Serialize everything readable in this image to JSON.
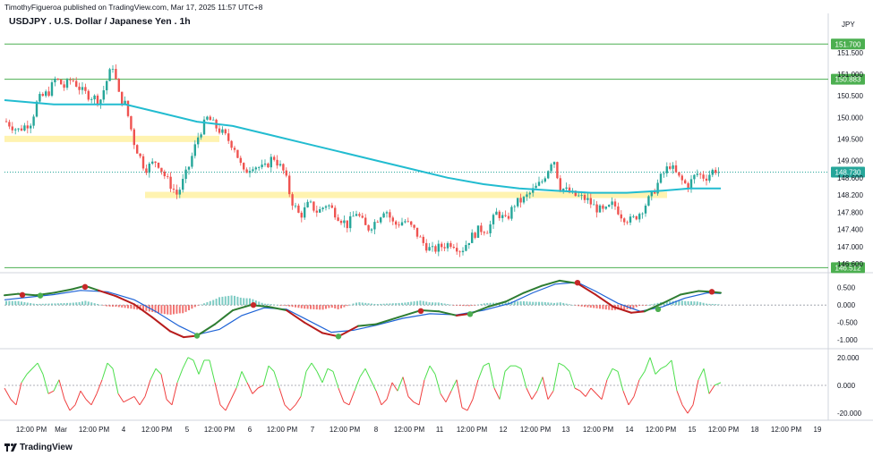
{
  "header": {
    "published_line": "TimothyFigueroa published on TradingView.com, Mar 17, 2025 11:57 UTC+8",
    "title": "USDJPY . U.S. Dollar / Japanese Yen . 1h",
    "currency_label": "JPY"
  },
  "footer": {
    "brand": "TradingView"
  },
  "colors": {
    "up": "#26a69a",
    "down": "#ef5350",
    "ema": "#22bcd0",
    "level_line": "#4caf50",
    "zone": "#fff3b0",
    "macd_fast": "#2e7d32",
    "macd_slow": "#1e63d6",
    "macd_down": "#b71c1c",
    "osc_up": "#4cdf4c",
    "osc_down": "#f04040"
  },
  "chart_data": [
    {
      "type": "candlestick",
      "title": "USDJPY . U.S. Dollar / Japanese Yen . 1h",
      "yaxis_ticks": [
        "151.500",
        "151.000",
        "150.500",
        "150.000",
        "149.500",
        "149.000",
        "148.600",
        "148.200",
        "147.800",
        "147.400",
        "147.000",
        "146.600"
      ],
      "ylim": [
        146.5,
        152.1
      ],
      "close_path": [
        [
          0,
          150.0
        ],
        [
          20,
          149.7
        ],
        [
          35,
          149.9
        ],
        [
          42,
          150.4
        ],
        [
          55,
          150.6
        ],
        [
          62,
          150.9
        ],
        [
          72,
          150.7
        ],
        [
          80,
          150.9
        ],
        [
          92,
          150.6
        ],
        [
          100,
          150.5
        ],
        [
          112,
          150.4
        ],
        [
          120,
          150.9
        ],
        [
          126,
          151.2
        ],
        [
          133,
          150.5
        ],
        [
          140,
          150.3
        ],
        [
          150,
          149.4
        ],
        [
          162,
          148.8
        ],
        [
          175,
          149.0
        ],
        [
          185,
          148.6
        ],
        [
          198,
          148.2
        ],
        [
          210,
          148.8
        ],
        [
          222,
          149.6
        ],
        [
          232,
          150.0
        ],
        [
          240,
          149.8
        ],
        [
          250,
          149.6
        ],
        [
          262,
          149.3
        ],
        [
          272,
          148.7
        ],
        [
          282,
          148.9
        ],
        [
          295,
          148.8
        ],
        [
          305,
          149.1
        ],
        [
          318,
          148.7
        ],
        [
          325,
          148.1
        ],
        [
          335,
          147.7
        ],
        [
          345,
          148.0
        ],
        [
          355,
          147.8
        ],
        [
          365,
          148.0
        ],
        [
          378,
          147.7
        ],
        [
          388,
          147.5
        ],
        [
          398,
          147.8
        ],
        [
          410,
          147.4
        ],
        [
          420,
          147.6
        ],
        [
          430,
          147.9
        ],
        [
          440,
          147.5
        ],
        [
          452,
          147.6
        ],
        [
          462,
          147.4
        ],
        [
          472,
          147.1
        ],
        [
          482,
          146.9
        ],
        [
          492,
          147.0
        ],
        [
          505,
          147.1
        ],
        [
          515,
          146.9
        ],
        [
          525,
          147.2
        ],
        [
          535,
          147.4
        ],
        [
          545,
          147.4
        ],
        [
          555,
          147.8
        ],
        [
          565,
          147.6
        ],
        [
          575,
          148.0
        ],
        [
          585,
          148.1
        ],
        [
          595,
          148.3
        ],
        [
          605,
          148.5
        ],
        [
          612,
          148.8
        ],
        [
          618,
          149.1
        ],
        [
          625,
          148.4
        ],
        [
          640,
          148.2
        ],
        [
          655,
          148.1
        ],
        [
          665,
          147.9
        ],
        [
          675,
          147.8
        ],
        [
          685,
          148.0
        ],
        [
          695,
          147.7
        ],
        [
          705,
          147.6
        ],
        [
          715,
          147.8
        ],
        [
          728,
          148.2
        ],
        [
          738,
          148.6
        ],
        [
          748,
          148.9
        ],
        [
          758,
          148.6
        ],
        [
          768,
          148.4
        ],
        [
          778,
          148.7
        ],
        [
          788,
          148.6
        ],
        [
          798,
          148.8
        ],
        [
          805,
          148.7
        ]
      ],
      "ema_path": [
        [
          5,
          150.4
        ],
        [
          60,
          150.3
        ],
        [
          100,
          150.3
        ],
        [
          140,
          150.3
        ],
        [
          180,
          150.1
        ],
        [
          220,
          149.9
        ],
        [
          260,
          149.8
        ],
        [
          300,
          149.6
        ],
        [
          340,
          149.4
        ],
        [
          380,
          149.2
        ],
        [
          420,
          149.0
        ],
        [
          460,
          148.8
        ],
        [
          500,
          148.6
        ],
        [
          540,
          148.45
        ],
        [
          580,
          148.35
        ],
        [
          620,
          148.3
        ],
        [
          660,
          148.25
        ],
        [
          700,
          148.25
        ],
        [
          740,
          148.3
        ],
        [
          770,
          148.35
        ],
        [
          805,
          148.35
        ]
      ],
      "horizontal_levels": [
        {
          "price": 151.7,
          "label": "151.700"
        },
        {
          "price": 150.883,
          "label": "150.883"
        },
        {
          "price": 146.512,
          "label": "146.512"
        }
      ],
      "current_price": {
        "price": 148.73,
        "label": "148.730"
      },
      "zones": [
        {
          "x1": 5,
          "x2": 245,
          "price": 149.5
        },
        {
          "x1": 162,
          "x2": 745,
          "price": 148.2
        }
      ]
    },
    {
      "type": "line",
      "yaxis_ticks": [
        "0.500",
        "0.000",
        "-0.500",
        "-1.000"
      ],
      "ylim": [
        -1.2,
        0.85
      ],
      "series": [],
      "fast": [
        [
          5,
          0.28
        ],
        [
          20,
          0.32
        ],
        [
          40,
          0.28
        ],
        [
          60,
          0.35
        ],
        [
          80,
          0.45
        ],
        [
          95,
          0.55
        ],
        [
          110,
          0.42
        ],
        [
          130,
          0.25
        ],
        [
          150,
          0.02
        ],
        [
          170,
          -0.35
        ],
        [
          190,
          -0.75
        ],
        [
          205,
          -0.92
        ],
        [
          220,
          -0.88
        ],
        [
          240,
          -0.55
        ],
        [
          260,
          -0.15
        ],
        [
          280,
          0.0
        ],
        [
          300,
          -0.05
        ],
        [
          320,
          -0.15
        ],
        [
          340,
          -0.5
        ],
        [
          360,
          -0.8
        ],
        [
          378,
          -0.9
        ],
        [
          400,
          -0.6
        ],
        [
          420,
          -0.55
        ],
        [
          445,
          -0.35
        ],
        [
          470,
          -0.15
        ],
        [
          490,
          -0.18
        ],
        [
          510,
          -0.3
        ],
        [
          525,
          -0.25
        ],
        [
          545,
          -0.05
        ],
        [
          565,
          0.1
        ],
        [
          585,
          0.35
        ],
        [
          605,
          0.55
        ],
        [
          625,
          0.7
        ],
        [
          645,
          0.62
        ],
        [
          665,
          0.3
        ],
        [
          685,
          -0.05
        ],
        [
          705,
          -0.22
        ],
        [
          720,
          -0.18
        ],
        [
          740,
          0.05
        ],
        [
          760,
          0.3
        ],
        [
          780,
          0.4
        ],
        [
          795,
          0.38
        ],
        [
          805,
          0.35
        ]
      ],
      "slow": [
        [
          5,
          0.15
        ],
        [
          30,
          0.22
        ],
        [
          60,
          0.3
        ],
        [
          90,
          0.42
        ],
        [
          120,
          0.38
        ],
        [
          150,
          0.15
        ],
        [
          175,
          -0.2
        ],
        [
          200,
          -0.6
        ],
        [
          220,
          -0.85
        ],
        [
          245,
          -0.7
        ],
        [
          270,
          -0.3
        ],
        [
          295,
          -0.08
        ],
        [
          320,
          -0.12
        ],
        [
          345,
          -0.45
        ],
        [
          370,
          -0.78
        ],
        [
          395,
          -0.72
        ],
        [
          420,
          -0.58
        ],
        [
          450,
          -0.38
        ],
        [
          480,
          -0.25
        ],
        [
          510,
          -0.28
        ],
        [
          540,
          -0.15
        ],
        [
          570,
          0.05
        ],
        [
          595,
          0.35
        ],
        [
          620,
          0.6
        ],
        [
          645,
          0.65
        ],
        [
          665,
          0.4
        ],
        [
          690,
          0.05
        ],
        [
          715,
          -0.18
        ],
        [
          740,
          -0.05
        ],
        [
          765,
          0.2
        ],
        [
          790,
          0.35
        ],
        [
          805,
          0.33
        ]
      ],
      "cross_points": [
        {
          "x": 25,
          "v": 0.29,
          "up": false
        },
        {
          "x": 45,
          "v": 0.27,
          "up": true
        },
        {
          "x": 95,
          "v": 0.52,
          "up": false
        },
        {
          "x": 220,
          "v": -0.88,
          "up": true
        },
        {
          "x": 283,
          "v": 0.0,
          "up": false
        },
        {
          "x": 378,
          "v": -0.9,
          "up": true
        },
        {
          "x": 470,
          "v": -0.17,
          "up": false
        },
        {
          "x": 525,
          "v": -0.26,
          "up": true
        },
        {
          "x": 645,
          "v": 0.64,
          "up": false
        },
        {
          "x": 735,
          "v": -0.12,
          "up": true
        },
        {
          "x": 795,
          "v": 0.38,
          "up": false
        }
      ]
    },
    {
      "type": "line",
      "yaxis_ticks": [
        "20.000",
        "0.000",
        "-20.000"
      ],
      "ylim": [
        -25,
        25
      ],
      "series": [],
      "osc": [
        [
          5,
          -2
        ],
        [
          12,
          -10
        ],
        [
          18,
          -14
        ],
        [
          24,
          2
        ],
        [
          30,
          8
        ],
        [
          36,
          12
        ],
        [
          42,
          16
        ],
        [
          48,
          8
        ],
        [
          54,
          -6
        ],
        [
          60,
          -4
        ],
        [
          66,
          4
        ],
        [
          72,
          -10
        ],
        [
          78,
          -18
        ],
        [
          84,
          -14
        ],
        [
          90,
          -4
        ],
        [
          96,
          -10
        ],
        [
          102,
          -14
        ],
        [
          108,
          -6
        ],
        [
          114,
          4
        ],
        [
          120,
          16
        ],
        [
          126,
          12
        ],
        [
          132,
          -6
        ],
        [
          138,
          -12
        ],
        [
          144,
          -10
        ],
        [
          150,
          -8
        ],
        [
          156,
          -14
        ],
        [
          162,
          -8
        ],
        [
          168,
          4
        ],
        [
          174,
          12
        ],
        [
          180,
          8
        ],
        [
          186,
          -10
        ],
        [
          192,
          -14
        ],
        [
          198,
          2
        ],
        [
          204,
          12
        ],
        [
          210,
          20
        ],
        [
          216,
          18
        ],
        [
          222,
          8
        ],
        [
          228,
          18
        ],
        [
          234,
          18
        ],
        [
          240,
          2
        ],
        [
          246,
          -14
        ],
        [
          252,
          -18
        ],
        [
          258,
          -10
        ],
        [
          264,
          -2
        ],
        [
          270,
          10
        ],
        [
          276,
          2
        ],
        [
          282,
          -6
        ],
        [
          288,
          -2
        ],
        [
          294,
          0
        ],
        [
          300,
          14
        ],
        [
          306,
          10
        ],
        [
          312,
          -2
        ],
        [
          318,
          -14
        ],
        [
          324,
          -18
        ],
        [
          330,
          -14
        ],
        [
          336,
          -8
        ],
        [
          342,
          10
        ],
        [
          348,
          16
        ],
        [
          354,
          10
        ],
        [
          360,
          2
        ],
        [
          366,
          12
        ],
        [
          372,
          10
        ],
        [
          378,
          -2
        ],
        [
          384,
          -12
        ],
        [
          390,
          -14
        ],
        [
          396,
          -4
        ],
        [
          402,
          6
        ],
        [
          408,
          12
        ],
        [
          414,
          4
        ],
        [
          420,
          -4
        ],
        [
          426,
          -14
        ],
        [
          432,
          -10
        ],
        [
          438,
          2
        ],
        [
          444,
          -4
        ],
        [
          450,
          6
        ],
        [
          456,
          -8
        ],
        [
          462,
          -12
        ],
        [
          468,
          -14
        ],
        [
          474,
          4
        ],
        [
          480,
          14
        ],
        [
          486,
          8
        ],
        [
          492,
          -6
        ],
        [
          498,
          -12
        ],
        [
          504,
          -4
        ],
        [
          510,
          4
        ],
        [
          516,
          -16
        ],
        [
          522,
          -18
        ],
        [
          528,
          -10
        ],
        [
          534,
          4
        ],
        [
          540,
          14
        ],
        [
          546,
          16
        ],
        [
          552,
          -2
        ],
        [
          558,
          -10
        ],
        [
          564,
          10
        ],
        [
          570,
          14
        ],
        [
          576,
          14
        ],
        [
          582,
          12
        ],
        [
          588,
          -2
        ],
        [
          594,
          -10
        ],
        [
          600,
          -4
        ],
        [
          606,
          6
        ],
        [
          612,
          -10
        ],
        [
          618,
          -4
        ],
        [
          624,
          16
        ],
        [
          630,
          14
        ],
        [
          636,
          10
        ],
        [
          642,
          -2
        ],
        [
          648,
          -4
        ],
        [
          654,
          -8
        ],
        [
          660,
          -2
        ],
        [
          666,
          -6
        ],
        [
          672,
          -10
        ],
        [
          678,
          4
        ],
        [
          684,
          12
        ],
        [
          690,
          10
        ],
        [
          696,
          -4
        ],
        [
          702,
          -14
        ],
        [
          708,
          -8
        ],
        [
          714,
          4
        ],
        [
          720,
          10
        ],
        [
          726,
          20
        ],
        [
          732,
          8
        ],
        [
          738,
          12
        ],
        [
          744,
          14
        ],
        [
          750,
          18
        ],
        [
          756,
          -4
        ],
        [
          762,
          -14
        ],
        [
          768,
          -20
        ],
        [
          774,
          -14
        ],
        [
          780,
          4
        ],
        [
          786,
          12
        ],
        [
          792,
          -6
        ],
        [
          798,
          0
        ],
        [
          805,
          2
        ]
      ]
    }
  ],
  "x_axis_labels": [
    {
      "x": 35,
      "label": "12:00 PM"
    },
    {
      "x": 68,
      "label": "Mar"
    },
    {
      "x": 105,
      "label": "12:00 PM"
    },
    {
      "x": 138,
      "label": "4"
    },
    {
      "x": 175,
      "label": "12:00 PM"
    },
    {
      "x": 209,
      "label": "5"
    },
    {
      "x": 245,
      "label": "12:00 PM"
    },
    {
      "x": 279,
      "label": "6"
    },
    {
      "x": 315,
      "label": "12:00 PM"
    },
    {
      "x": 349,
      "label": "7"
    },
    {
      "x": 385,
      "label": "12:00 PM"
    },
    {
      "x": 420,
      "label": "8"
    },
    {
      "x": 457,
      "label": "12:00 PM"
    },
    {
      "x": 491,
      "label": "11"
    },
    {
      "x": 527,
      "label": "12:00 PM"
    },
    {
      "x": 562,
      "label": "12"
    },
    {
      "x": 598,
      "label": "12:00 PM"
    },
    {
      "x": 632,
      "label": "13"
    },
    {
      "x": 668,
      "label": "12:00 PM"
    },
    {
      "x": 703,
      "label": "14"
    },
    {
      "x": 738,
      "label": "12:00 PM"
    },
    {
      "x": 773,
      "label": "15"
    },
    {
      "x": 808,
      "label": "12:00 PM"
    },
    {
      "x": 843,
      "label": "18"
    },
    {
      "x": 878,
      "label": "12:00 PM"
    },
    {
      "x": 913,
      "label": "19"
    }
  ]
}
